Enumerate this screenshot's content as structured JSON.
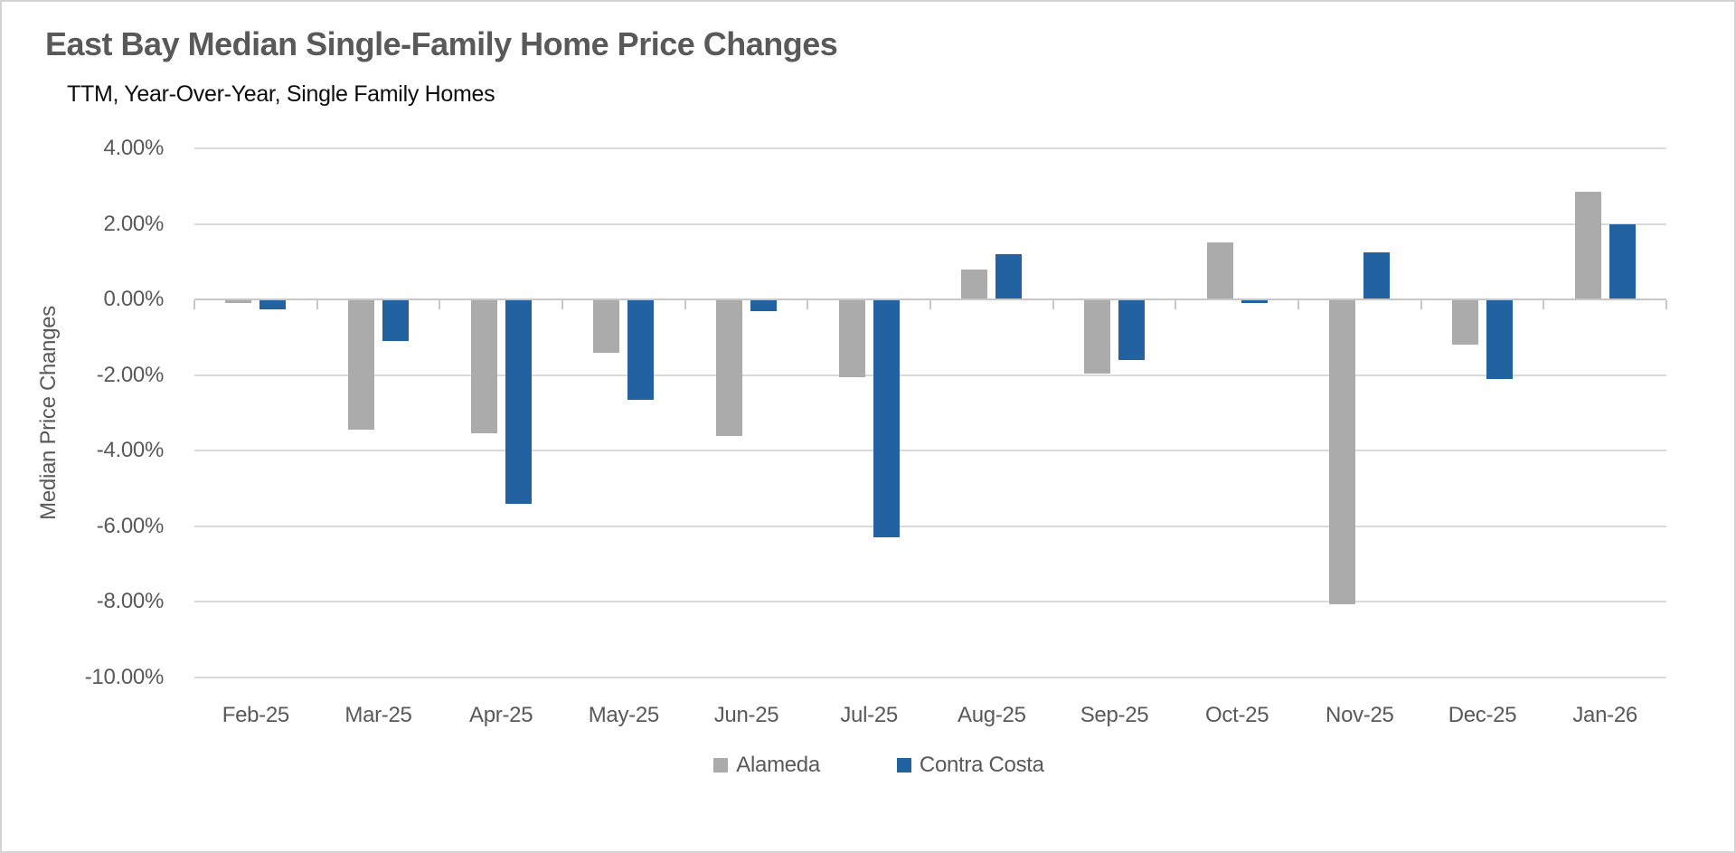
{
  "window": {
    "background": "#FFFFFF",
    "border_color": "#D4D4D4"
  },
  "chart_data": {
    "type": "bar",
    "title": "East Bay Median Single-Family Home Price Changes",
    "subtitle": "TTM, Year-Over-Year, Single Family Homes",
    "ylabel": "Median Price Changes",
    "xlabel": "",
    "categories": [
      "Feb-25",
      "Mar-25",
      "Apr-25",
      "May-25",
      "Jun-25",
      "Jul-25",
      "Aug-25",
      "Sep-25",
      "Oct-25",
      "Nov-25",
      "Dec-25",
      "Jan-26"
    ],
    "series": [
      {
        "name": "Alameda",
        "color": "#ABABAB",
        "values": [
          -0.1,
          -3.45,
          -3.55,
          -1.4,
          -3.6,
          -2.05,
          0.8,
          -1.95,
          1.5,
          -8.05,
          -1.2,
          2.85
        ]
      },
      {
        "name": "Contra Costa",
        "color": "#2362A0",
        "values": [
          -0.25,
          -1.1,
          -5.4,
          -2.65,
          -0.3,
          -6.3,
          1.2,
          -1.6,
          -0.1,
          1.25,
          -2.1,
          2.0
        ]
      }
    ],
    "y_axis": {
      "min": -10,
      "max": 4,
      "step": 2,
      "unit": "%",
      "tick_labels": [
        "4.00%",
        "2.00%",
        "0.00%",
        "-2.00%",
        "-4.00%",
        "-6.00%",
        "-8.00%",
        "-10.00%"
      ]
    },
    "legend": {
      "position": "bottom",
      "entries": [
        "Alameda",
        "Contra Costa"
      ]
    },
    "grid": true,
    "colors": {
      "gridline": "#DADADA",
      "axis_line": "#C8C6C6",
      "tick_text": "#595959",
      "title_text": "#595959",
      "subtitle_text": "#0D0D0D"
    }
  }
}
